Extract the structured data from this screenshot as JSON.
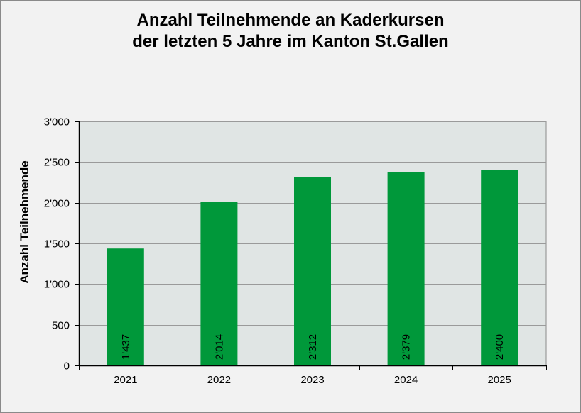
{
  "chart_data": {
    "type": "bar",
    "title_line1": "Anzahl Teilnehmende an Kaderkursen",
    "title_line2": "der letzten 5 Jahre im Kanton St.Gallen",
    "ylabel": "Anzahl Teilnehmende",
    "xlabel": "",
    "categories": [
      "2021",
      "2022",
      "2023",
      "2024",
      "2025"
    ],
    "values": [
      1437,
      2014,
      2312,
      2379,
      2400
    ],
    "data_labels": [
      "1'437",
      "2'014",
      "2'312",
      "2'379",
      "2'400"
    ],
    "ylim": [
      0,
      3000
    ],
    "yticks": [
      0,
      500,
      1000,
      1500,
      2000,
      2500,
      3000
    ],
    "ytick_labels": [
      "0",
      "500",
      "1'000",
      "1'500",
      "2'000",
      "2'500",
      "3'000"
    ],
    "grid": true,
    "bar_color": "#00983a",
    "plot_background": "#e0e5e4",
    "figure_background": "#f2f2f2",
    "grid_color": "#9a9a9a"
  }
}
